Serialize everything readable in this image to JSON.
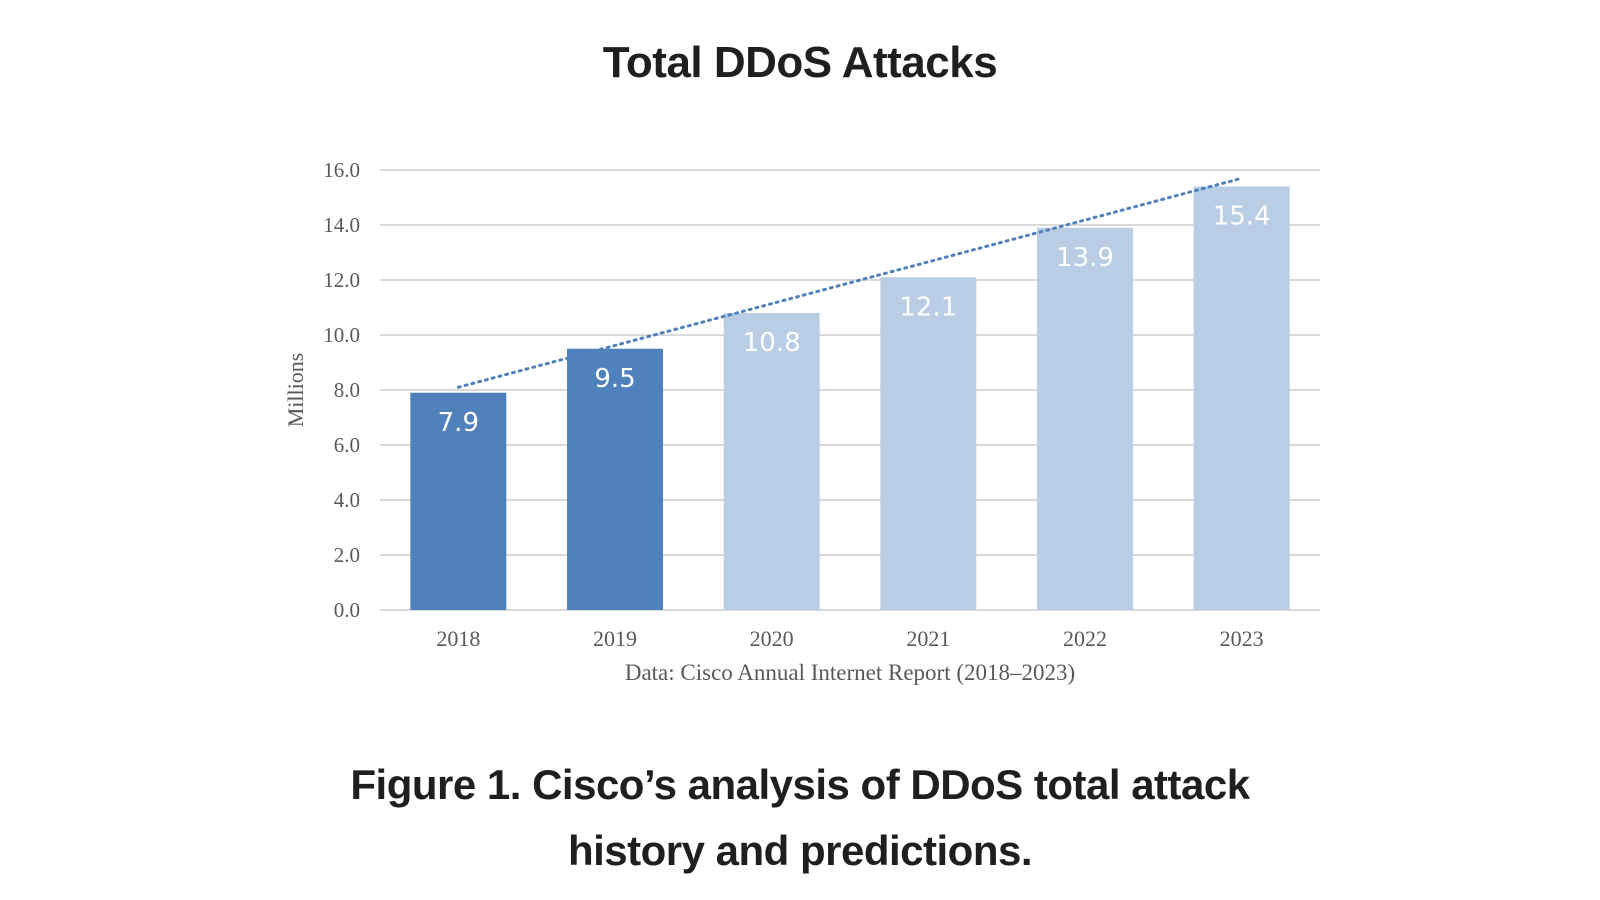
{
  "title": "Total DDoS Attacks",
  "caption_line1": "Figure 1. Cisco’s analysis of DDoS total attack",
  "caption_line2": "history and predictions.",
  "chart_data": {
    "type": "bar",
    "categories": [
      "2018",
      "2019",
      "2020",
      "2021",
      "2022",
      "2023"
    ],
    "values": [
      7.9,
      9.5,
      10.8,
      12.1,
      13.9,
      15.4
    ],
    "data_labels": [
      "7.9",
      "9.5",
      "10.8",
      "12.1",
      "13.9",
      "15.4"
    ],
    "ylabel": "Millions",
    "xlabel": "Data: Cisco Annual Internet Report (2018–2023)",
    "ylim": [
      0,
      16
    ],
    "yticks": [
      "0.0",
      "2.0",
      "4.0",
      "6.0",
      "8.0",
      "10.0",
      "12.0",
      "14.0",
      "16.0"
    ],
    "grid": true,
    "trendline": {
      "style": "dotted",
      "start": 8.1,
      "end": 15.7
    },
    "colors": {
      "historical": "#4f81bd",
      "predicted": "#b9cde5",
      "trendline": "#4f81bd",
      "grid": "#d9d9d9"
    },
    "historical_count": 2
  }
}
